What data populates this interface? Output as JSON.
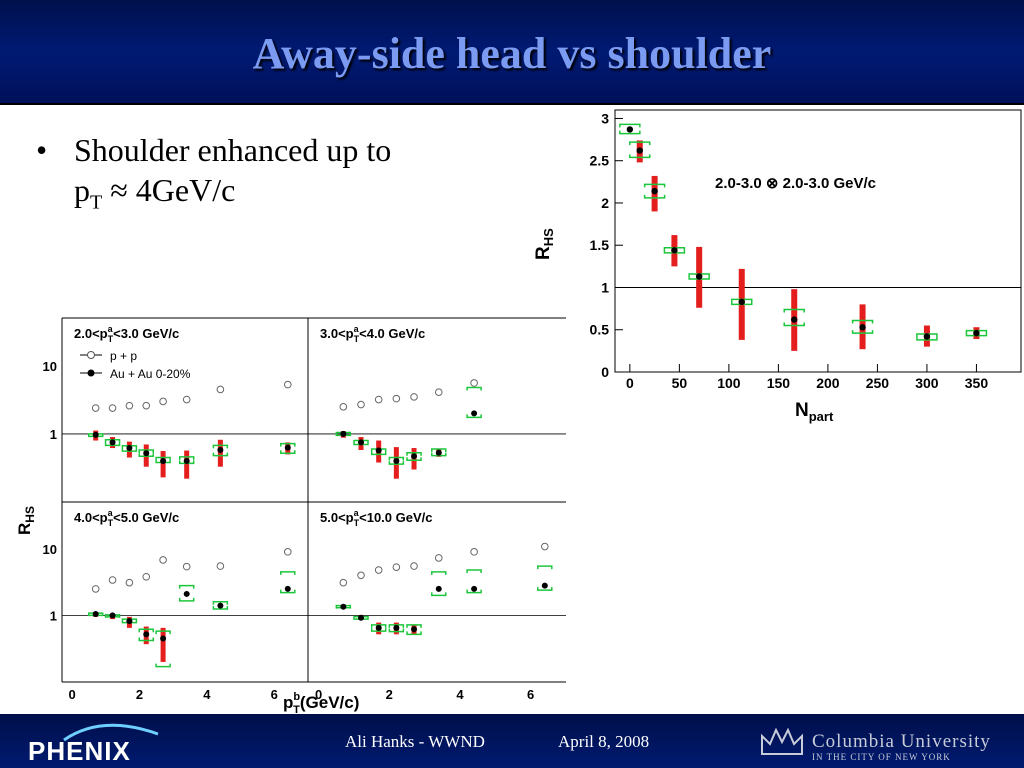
{
  "slide": {
    "title": "Away-side head vs shoulder",
    "bullet_prefix": "Shoulder enhanced up to",
    "bullet_pt": "p",
    "bullet_pt_sub": "T",
    "bullet_suffix": " ≈ 4GeV/c"
  },
  "footer": {
    "logo_left": "PHENIX",
    "author": "Ali Hanks - WWND",
    "date": "April 8, 2008",
    "logo_right": "Columbia University",
    "logo_right_sub": "IN THE CITY OF NEW YORK"
  },
  "colors": {
    "header_bg": "#00186b",
    "title": "#7b9bf2",
    "sys_bar": "#e41d1d",
    "sys_bracket": "#1cc63b",
    "au_au": "#000000",
    "pp": "#666666"
  },
  "chart_data": [
    {
      "type": "scatter",
      "title": "2.0-3.0 ⊗ 2.0-3.0 GeV/c",
      "xlabel": "N",
      "xlabel_sub": "part",
      "ylabel": "R",
      "ylabel_sub": "HS",
      "xlim": [
        -15,
        395
      ],
      "ylim": [
        0,
        3.1
      ],
      "xticks": [
        "0",
        "50",
        "100",
        "150",
        "200",
        "250",
        "300",
        "350"
      ],
      "yticks": [
        "0",
        "0.5",
        "1",
        "1.5",
        "2",
        "2.5",
        "3"
      ],
      "reference_line": 1,
      "grid": false,
      "series": [
        {
          "x": [
            0,
            10,
            25,
            45,
            70,
            113,
            166,
            235,
            300,
            350
          ],
          "y": [
            2.87,
            2.62,
            2.14,
            1.44,
            1.13,
            0.83,
            0.62,
            0.53,
            0.42,
            0.46
          ],
          "sys_low": [
            2.87,
            2.48,
            1.9,
            1.25,
            0.76,
            0.38,
            0.25,
            0.27,
            0.3,
            0.39
          ],
          "sys_high": [
            2.87,
            2.74,
            2.32,
            1.62,
            1.48,
            1.22,
            0.98,
            0.8,
            0.55,
            0.53
          ],
          "bracket_low": [
            2.82,
            2.54,
            2.06,
            1.41,
            1.1,
            0.8,
            0.55,
            0.46,
            0.38,
            0.43
          ],
          "bracket_high": [
            2.93,
            2.72,
            2.22,
            1.47,
            1.16,
            0.86,
            0.74,
            0.61,
            0.45,
            0.49
          ]
        }
      ]
    },
    {
      "type": "scatter",
      "panel": "2.0<p_T^a<3.0 GeV/c",
      "panel_label": "2.0<p",
      "panel_label_rest": "<3.0 GeV/c",
      "xlabel": "p_T^b(GeV/c)",
      "ylabel": "R_HS",
      "ylog": true,
      "legend": [
        "p + p",
        "Au + Au 0-20%"
      ],
      "series": [
        {
          "name": "p + p",
          "x": [
            0.7,
            1.2,
            1.7,
            2.2,
            2.7,
            3.4,
            4.4,
            6.4
          ],
          "y": [
            2.4,
            2.4,
            2.6,
            2.6,
            3.0,
            3.2,
            4.5,
            5.3
          ]
        },
        {
          "name": "Au + Au 0-20%",
          "x": [
            0.7,
            1.2,
            1.7,
            2.2,
            2.7,
            3.4,
            4.4,
            6.4
          ],
          "y": [
            0.97,
            0.75,
            0.62,
            0.52,
            0.4,
            0.4,
            0.58,
            0.63
          ],
          "sys_low": [
            0.8,
            0.62,
            0.45,
            0.33,
            0.23,
            0.22,
            0.33,
            0.5
          ],
          "sys_high": [
            1.12,
            0.9,
            0.77,
            0.7,
            0.56,
            0.57,
            0.82,
            0.75
          ],
          "bracket_low": [
            0.92,
            0.68,
            0.56,
            0.47,
            0.38,
            0.37,
            0.48,
            0.52
          ],
          "bracket_high": [
            1.0,
            0.82,
            0.67,
            0.58,
            0.45,
            0.46,
            0.68,
            0.72
          ]
        }
      ]
    },
    {
      "type": "scatter",
      "panel": "3.0<p_T^a<4.0 GeV/c",
      "panel_label": "3.0<p",
      "panel_label_rest": "<4.0 GeV/c",
      "ylog": true,
      "series": [
        {
          "name": "p + p",
          "x": [
            0.7,
            1.2,
            1.7,
            2.2,
            2.7,
            3.4,
            4.4
          ],
          "y": [
            2.5,
            2.7,
            3.2,
            3.3,
            3.5,
            4.1,
            5.6
          ]
        },
        {
          "name": "Au + Au 0-20%",
          "x": [
            0.7,
            1.2,
            1.7,
            2.2,
            2.7,
            3.4,
            4.4
          ],
          "y": [
            1.0,
            0.75,
            0.57,
            0.4,
            0.47,
            0.53,
            2.0
          ],
          "sys_low": [
            0.88,
            0.58,
            0.38,
            0.22,
            0.3,
            0.46,
            2.0
          ],
          "sys_high": [
            1.1,
            0.9,
            0.8,
            0.64,
            0.62,
            0.6,
            2.0
          ],
          "bracket_low": [
            0.95,
            0.7,
            0.5,
            0.36,
            0.41,
            0.48,
            1.75
          ],
          "bracket_high": [
            1.05,
            0.8,
            0.6,
            0.45,
            0.53,
            0.6,
            4.8
          ]
        }
      ]
    },
    {
      "type": "scatter",
      "panel": "4.0<p_T^a<5.0 GeV/c",
      "panel_label": "4.0<p",
      "panel_label_rest": "<5.0 GeV/c",
      "ylog": true,
      "series": [
        {
          "name": "p + p",
          "x": [
            0.7,
            1.2,
            1.7,
            2.2,
            2.7,
            3.4,
            4.4,
            6.4
          ],
          "y": [
            2.5,
            3.4,
            3.1,
            3.8,
            6.8,
            5.4,
            5.5,
            9.0
          ]
        },
        {
          "name": "Au + Au 0-20%",
          "x": [
            0.7,
            1.2,
            1.7,
            2.2,
            2.7,
            3.4,
            4.4,
            6.4
          ],
          "y": [
            1.05,
            1.0,
            0.82,
            0.52,
            0.45,
            2.1,
            1.4,
            2.5
          ],
          "sys_low": [
            0.95,
            0.88,
            0.65,
            0.37,
            0.2,
            2.1,
            1.4,
            2.5
          ],
          "sys_high": [
            1.12,
            1.05,
            0.95,
            0.68,
            0.65,
            2.1,
            1.4,
            2.5
          ],
          "bracket_low": [
            1.0,
            0.95,
            0.78,
            0.42,
            0.17,
            1.65,
            1.25,
            2.2
          ],
          "bracket_high": [
            1.08,
            1.02,
            0.88,
            0.62,
            0.58,
            2.8,
            1.6,
            4.5
          ]
        }
      ]
    },
    {
      "type": "scatter",
      "panel": "5.0<p_T^a<10.0 GeV/c",
      "panel_label": "5.0<p",
      "panel_label_rest": "<10.0 GeV/c",
      "ylog": true,
      "series": [
        {
          "name": "p + p",
          "x": [
            0.7,
            1.2,
            1.7,
            2.2,
            2.7,
            3.4,
            4.4,
            6.4
          ],
          "y": [
            3.1,
            4.0,
            4.8,
            5.3,
            5.5,
            7.3,
            9.0,
            10.8
          ]
        },
        {
          "name": "Au + Au 0-20%",
          "x": [
            0.7,
            1.2,
            1.7,
            2.2,
            2.7,
            3.4,
            4.4,
            6.4
          ],
          "y": [
            1.35,
            0.92,
            0.65,
            0.65,
            0.62,
            2.5,
            2.5,
            2.8
          ],
          "sys_low": [
            1.3,
            0.85,
            0.52,
            0.52,
            0.52,
            2.5,
            2.5,
            2.8
          ],
          "sys_high": [
            1.4,
            1.0,
            0.78,
            0.78,
            0.72,
            2.5,
            2.5,
            2.8
          ],
          "bracket_low": [
            1.3,
            0.88,
            0.58,
            0.57,
            0.52,
            2.0,
            2.2,
            2.4
          ],
          "bracket_high": [
            1.4,
            0.96,
            0.72,
            0.72,
            0.72,
            4.5,
            4.8,
            5.5
          ]
        }
      ]
    }
  ],
  "grid_labels": {
    "ylabel": "R",
    "ylabel_sub": "HS",
    "xlabel": "p",
    "xlabel_sup": "b",
    "xlabel_sub": "T",
    "xlabel_rest": "(GeV/c)",
    "legend_pp": "p + p",
    "legend_auau": "Au + Au 0-20%",
    "yticks_log": [
      "10",
      "1"
    ],
    "xticks": [
      "0",
      "2",
      "4",
      "6"
    ]
  }
}
